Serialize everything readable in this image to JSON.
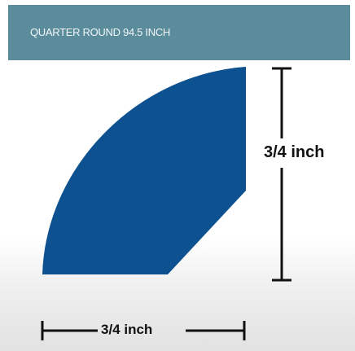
{
  "header": {
    "title": "QUARTER ROUND 94.5 INCH"
  },
  "dimensions": {
    "height_label": "3/4 inch",
    "width_label": "3/4 inch"
  },
  "colors": {
    "header_background": "#5a8c9c",
    "profile_fill": "#0d5191",
    "dimension_lines": "#111111"
  }
}
